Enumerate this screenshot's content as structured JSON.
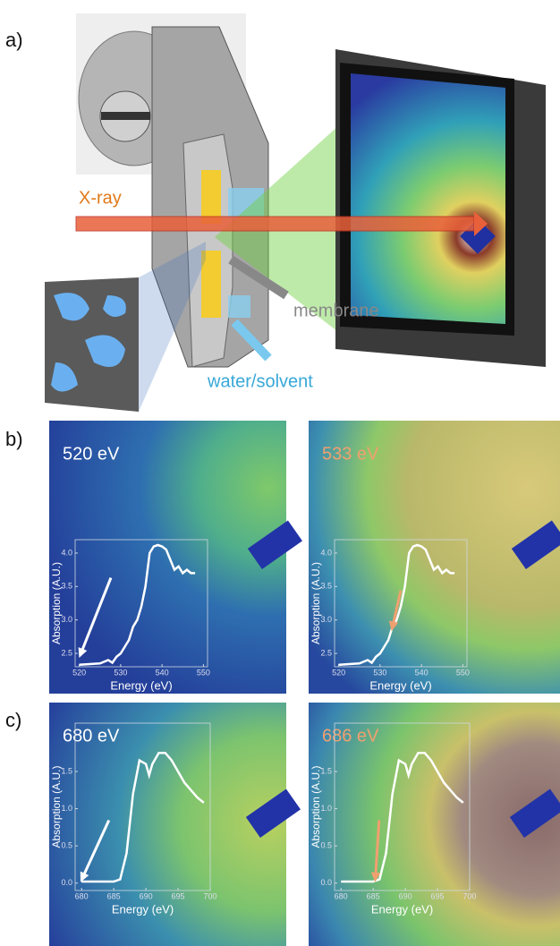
{
  "panel_labels": [
    "a)",
    "b)",
    "c)"
  ],
  "diagram": {
    "labels": [
      "X-ray",
      "membrane",
      "water/solvent"
    ]
  },
  "chart_data": [
    {
      "type": "line",
      "title": "520 eV",
      "title_color": "#ffffff",
      "xlabel": "Energy (eV)",
      "ylabel": "Absorption (A.U.)",
      "x": [
        520,
        525,
        527,
        528,
        529,
        530,
        531,
        532,
        533,
        534,
        535,
        536,
        537,
        538,
        539,
        540,
        541,
        542,
        543,
        544,
        545,
        546,
        547,
        548
      ],
      "values": [
        2.33,
        2.35,
        2.4,
        2.36,
        2.45,
        2.5,
        2.6,
        2.7,
        2.9,
        3.0,
        3.2,
        3.5,
        4.0,
        4.1,
        4.12,
        4.1,
        4.05,
        3.9,
        3.75,
        3.8,
        3.7,
        3.75,
        3.7,
        3.7
      ],
      "color": "#ffffff",
      "xlim": [
        519,
        551
      ],
      "ylim": [
        2.3,
        4.2
      ],
      "xticks": [
        520,
        530,
        540,
        550
      ],
      "yticks": [
        2.5,
        {
          "value": 3,
          "label": "3.0"
        },
        3.5,
        {
          "value": 4,
          "label": "4.0"
        }
      ]
    },
    {
      "type": "line",
      "title": "533 eV",
      "title_color": "#f0a070",
      "xlabel": "Energy (eV)",
      "ylabel": "Absorption (A.U.)",
      "x": [
        520,
        525,
        527,
        528,
        529,
        530,
        531,
        532,
        533,
        534,
        535,
        536,
        537,
        538,
        539,
        540,
        541,
        542,
        543,
        544,
        545,
        546,
        547,
        548
      ],
      "values": [
        2.33,
        2.35,
        2.4,
        2.36,
        2.45,
        2.5,
        2.6,
        2.7,
        2.9,
        3.0,
        3.2,
        3.5,
        4.0,
        4.1,
        4.12,
        4.1,
        4.05,
        3.9,
        3.75,
        3.8,
        3.7,
        3.75,
        3.7,
        3.7
      ],
      "color": "#ffffff",
      "xlim": [
        519,
        551
      ],
      "ylim": [
        2.3,
        4.2
      ],
      "xticks": [
        520,
        530,
        540,
        550
      ],
      "yticks": [
        2.5,
        {
          "value": 3,
          "label": "3.0"
        },
        3.5,
        {
          "value": 4,
          "label": "4.0"
        }
      ]
    },
    {
      "type": "line",
      "title": "680 eV",
      "title_color": "#ffffff",
      "xlabel": "Energy (eV)",
      "ylabel": "Absorption (A.U.)",
      "x": [
        680,
        685,
        686,
        687,
        688,
        689,
        690,
        690.5,
        691,
        692,
        693,
        694,
        695,
        696,
        697,
        698,
        699
      ],
      "values": [
        0.02,
        0.02,
        0.05,
        0.4,
        1.2,
        1.65,
        1.6,
        1.45,
        1.6,
        1.75,
        1.75,
        1.65,
        1.5,
        1.35,
        1.25,
        1.15,
        1.08
      ],
      "color": "#ffffff",
      "xlim": [
        679,
        700
      ],
      "ylim": [
        -0.1,
        2.15
      ],
      "xticks": [
        680,
        685,
        690,
        695,
        700
      ],
      "yticks": [
        {
          "value": 0,
          "label": "0.0"
        },
        0.5,
        {
          "value": 1,
          "label": "1.0"
        },
        1.5
      ]
    },
    {
      "type": "line",
      "title": "686 eV",
      "title_color": "#f0a070",
      "xlabel": "Energy (eV)",
      "ylabel": "Absorption (A.U.)",
      "x": [
        680,
        685,
        686,
        687,
        688,
        689,
        690,
        690.5,
        691,
        692,
        693,
        694,
        695,
        696,
        697,
        698,
        699
      ],
      "values": [
        0.02,
        0.02,
        0.05,
        0.4,
        1.2,
        1.65,
        1.6,
        1.45,
        1.6,
        1.75,
        1.75,
        1.65,
        1.5,
        1.35,
        1.25,
        1.15,
        1.08
      ],
      "color": "#ffffff",
      "xlim": [
        679,
        700
      ],
      "ylim": [
        -0.1,
        2.15
      ],
      "xticks": [
        680,
        685,
        690,
        695,
        700
      ],
      "yticks": [
        {
          "value": 0,
          "label": "0.0"
        },
        0.5,
        {
          "value": 1,
          "label": "1.0"
        },
        1.5
      ]
    }
  ]
}
